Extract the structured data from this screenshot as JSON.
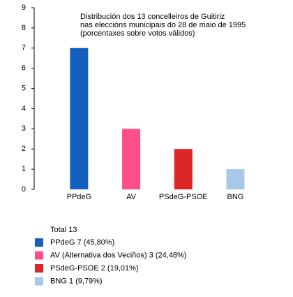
{
  "chart_data": {
    "type": "bar",
    "annotation": [
      "Distribución dos 13 concelleiros de Guitiriz",
      "nas eleccións municipais do 28 de maio de 1995",
      "(porcentaxes sobre votos válidos)"
    ],
    "categories": [
      "PPdeG",
      "AV",
      "PSdeG-PSOE",
      "BNG"
    ],
    "values": [
      7,
      3,
      2,
      1
    ],
    "colors": [
      "#1560bd",
      "#ff4f8b",
      "#dc2626",
      "#a8c8e8"
    ],
    "ylim": [
      0,
      9
    ],
    "yticks": [
      0,
      1,
      2,
      3,
      4,
      5,
      6,
      7,
      8,
      9
    ],
    "legend_title": "Total 13",
    "legend_labels": [
      "PPdeG 7 (45,80%)",
      "AV (Alternativa dos Veciños) 3 (24,48%)",
      "PSdeG-PSOE 2 (19,01%)",
      "BNG 1 (9,79%)"
    ]
  }
}
